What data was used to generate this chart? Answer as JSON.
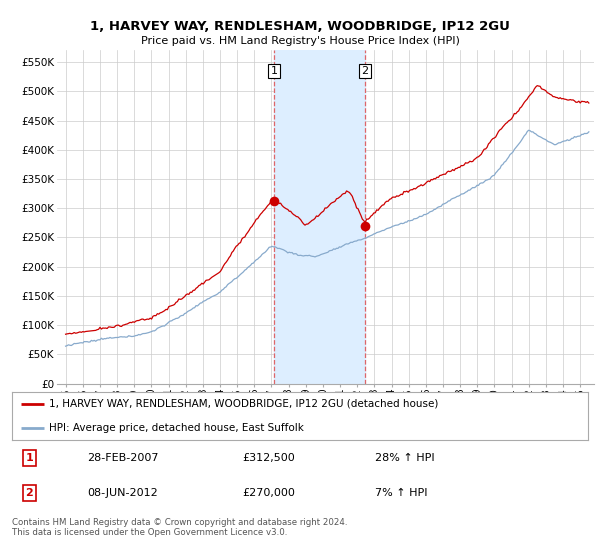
{
  "title": "1, HARVEY WAY, RENDLESHAM, WOODBRIDGE, IP12 2GU",
  "subtitle": "Price paid vs. HM Land Registry's House Price Index (HPI)",
  "ylim": [
    0,
    570000
  ],
  "yticks": [
    0,
    50000,
    100000,
    150000,
    200000,
    250000,
    300000,
    350000,
    400000,
    450000,
    500000,
    550000
  ],
  "ytick_labels": [
    "£0",
    "£50K",
    "£100K",
    "£150K",
    "£200K",
    "£250K",
    "£300K",
    "£350K",
    "£400K",
    "£450K",
    "£500K",
    "£550K"
  ],
  "sale1_date": 2007.15,
  "sale1_price": 312500,
  "sale2_date": 2012.44,
  "sale2_price": 270000,
  "legend_red": "1, HARVEY WAY, RENDLESHAM, WOODBRIDGE, IP12 2GU (detached house)",
  "legend_blue": "HPI: Average price, detached house, East Suffolk",
  "table_row1": [
    "1",
    "28-FEB-2007",
    "£312,500",
    "28% ↑ HPI"
  ],
  "table_row2": [
    "2",
    "08-JUN-2012",
    "£270,000",
    "7% ↑ HPI"
  ],
  "footer": "Contains HM Land Registry data © Crown copyright and database right 2024.\nThis data is licensed under the Open Government Licence v3.0.",
  "red_color": "#cc0000",
  "blue_color": "#88aacc",
  "shade_color": "#ddeeff",
  "grid_color": "#cccccc",
  "background_color": "#ffffff",
  "xmin": 1995,
  "xmax": 2025
}
